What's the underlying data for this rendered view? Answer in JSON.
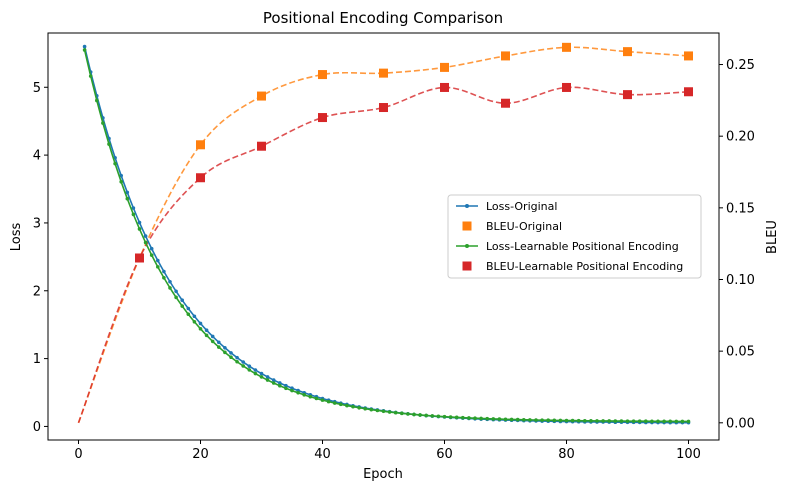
{
  "chart_data": {
    "type": "line",
    "title": "Positional Encoding Comparison",
    "xlabel": "Epoch",
    "ylabel_left": "Loss",
    "ylabel_right": "BLEU",
    "xlim": [
      -5,
      105
    ],
    "ylim_left": [
      -0.2,
      5.8
    ],
    "ylim_right": [
      -0.012,
      0.272
    ],
    "x_ticks": [
      0,
      20,
      40,
      60,
      80,
      100
    ],
    "y_ticks_left": [
      0,
      1,
      2,
      3,
      4,
      5
    ],
    "y_ticks_right": [
      0.0,
      0.05,
      0.1,
      0.15,
      0.2,
      0.25
    ],
    "y_tick_labels_right": [
      "0.00",
      "0.05",
      "0.10",
      "0.15",
      "0.20",
      "0.25"
    ],
    "grid": false,
    "legend_position": "center-right",
    "legend": [
      {
        "label": "Loss-Original",
        "marker": "line-dot",
        "color": "#1f77b4"
      },
      {
        "label": "BLEU-Original",
        "marker": "square",
        "color": "#ff7f0e"
      },
      {
        "label": "Loss-Learnable Positional Encoding",
        "marker": "line-dot",
        "color": "#2ca02c"
      },
      {
        "label": "BLEU-Learnable Positional Encoding",
        "marker": "square",
        "color": "#d62728"
      }
    ],
    "series": [
      {
        "name": "Loss-Original",
        "axis": "left",
        "color": "#1f77b4",
        "style": "line-dot",
        "model": {
          "a": 5.6,
          "b": 0.07,
          "c": 0.05,
          "x_start": 1,
          "x_end": 100
        }
      },
      {
        "name": "Loss-Learnable Positional Encoding",
        "axis": "left",
        "color": "#2ca02c",
        "style": "line-dot",
        "model": {
          "a": 5.55,
          "b": 0.073,
          "c": 0.07,
          "x_start": 1,
          "x_end": 100
        }
      },
      {
        "name": "BLEU-Original",
        "axis": "right",
        "color": "#ff7f0e",
        "style": "square-dashed",
        "x": [
          10,
          20,
          30,
          40,
          50,
          60,
          70,
          80,
          90,
          100
        ],
        "values": [
          0.115,
          0.194,
          0.228,
          0.243,
          0.244,
          0.248,
          0.256,
          0.262,
          0.259,
          0.256
        ],
        "curve_origin": [
          0,
          0.0
        ]
      },
      {
        "name": "BLEU-Learnable Positional Encoding",
        "axis": "right",
        "color": "#d62728",
        "style": "square-dashed",
        "x": [
          10,
          20,
          30,
          40,
          50,
          60,
          70,
          80,
          90,
          100
        ],
        "values": [
          0.115,
          0.171,
          0.193,
          0.213,
          0.22,
          0.234,
          0.223,
          0.234,
          0.229,
          0.231
        ],
        "curve_origin": [
          0,
          0.0
        ]
      }
    ]
  }
}
